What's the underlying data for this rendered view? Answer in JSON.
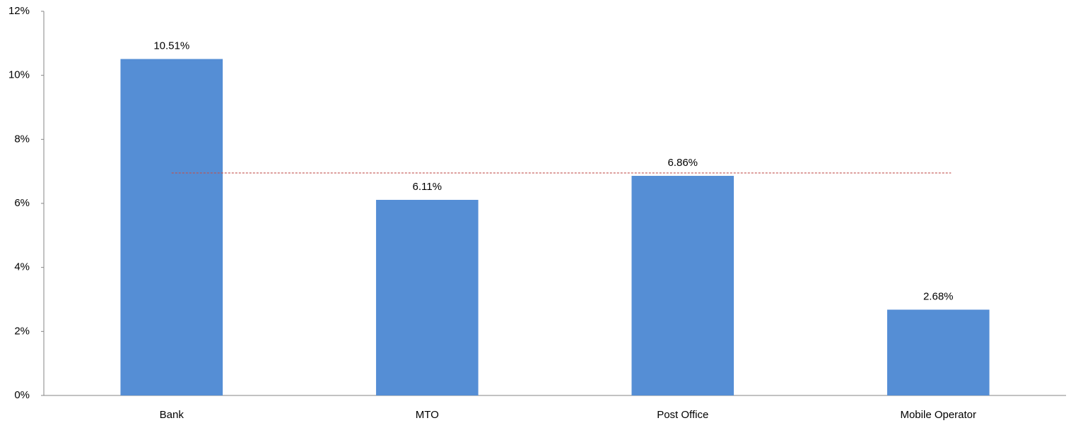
{
  "chart_data": {
    "type": "bar",
    "categories": [
      "Bank",
      "MTO",
      "Post Office",
      "Mobile Operator"
    ],
    "values": [
      10.51,
      6.11,
      6.86,
      2.68
    ],
    "value_labels": [
      "10.51%",
      "6.11%",
      "6.86%",
      "2.68%"
    ],
    "color": "#558ed5",
    "ylim": [
      0,
      12
    ],
    "yticks": [
      {
        "value": 0,
        "label": "0%"
      },
      {
        "value": 2,
        "label": "2%"
      },
      {
        "value": 4,
        "label": "4%"
      },
      {
        "value": 6,
        "label": "6%"
      },
      {
        "value": 8,
        "label": "8%"
      },
      {
        "value": 10,
        "label": "10%"
      },
      {
        "value": 12,
        "label": "12%"
      }
    ],
    "grid": false,
    "reference_line": {
      "value": 6.95,
      "color": "#c0504d"
    }
  }
}
